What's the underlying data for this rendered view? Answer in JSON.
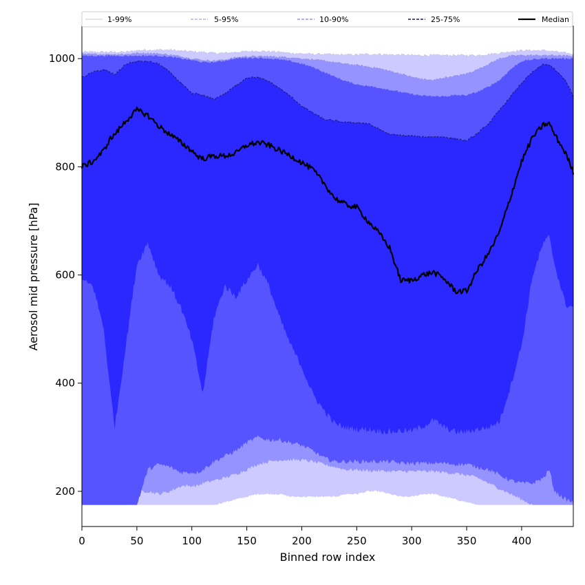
{
  "chart_data": {
    "type": "area",
    "xlabel": "Binned row index",
    "ylabel": "Aerosol mid pressure [hPa]",
    "xlim": [
      0,
      447
    ],
    "ylim": [
      135,
      1060
    ],
    "x_ticks": [
      0,
      50,
      100,
      150,
      200,
      250,
      300,
      350,
      400
    ],
    "y_ticks": [
      200,
      400,
      600,
      800,
      1000
    ],
    "grid": false,
    "legend_position": "top",
    "x_knots": [
      0,
      5,
      10,
      20,
      25,
      30,
      40,
      50,
      60,
      70,
      80,
      90,
      100,
      105,
      110,
      120,
      130,
      140,
      150,
      160,
      170,
      180,
      190,
      200,
      210,
      220,
      230,
      240,
      250,
      260,
      270,
      280,
      290,
      300,
      310,
      320,
      330,
      340,
      350,
      360,
      370,
      380,
      390,
      400,
      410,
      420,
      425,
      430,
      440,
      447
    ],
    "series": [
      {
        "name": "1-99%",
        "color": "#cccaff",
        "line_color": "#c7c7e6",
        "lower": [
          175,
          175,
          175,
          175,
          175,
          175,
          175,
          175,
          175,
          175,
          175,
          175,
          175,
          175,
          175,
          175,
          180,
          185,
          190,
          195,
          195,
          195,
          190,
          190,
          190,
          190,
          190,
          195,
          195,
          200,
          200,
          195,
          190,
          190,
          195,
          195,
          190,
          185,
          180,
          175,
          175,
          175,
          175,
          175,
          175,
          175,
          175,
          175,
          175,
          175
        ],
        "upper": [
          1012,
          1012,
          1012,
          1012,
          1012,
          1012,
          1012,
          1015,
          1016,
          1016,
          1016,
          1014,
          1013,
          1012,
          1012,
          1010,
          1010,
          1012,
          1013,
          1014,
          1013,
          1012,
          1010,
          1009,
          1008,
          1008,
          1007,
          1007,
          1007,
          1008,
          1008,
          1007,
          1007,
          1006,
          1006,
          1006,
          1006,
          1006,
          1006,
          1006,
          1008,
          1010,
          1013,
          1015,
          1015,
          1015,
          1014,
          1013,
          1010,
          1008
        ]
      },
      {
        "name": "5-95%",
        "color": "#9593ff",
        "line_color": "#8f8fd6",
        "lower": [
          175,
          175,
          175,
          175,
          175,
          175,
          175,
          200,
          200,
          195,
          200,
          210,
          210,
          210,
          215,
          220,
          225,
          232,
          240,
          250,
          255,
          258,
          258,
          258,
          255,
          250,
          245,
          240,
          240,
          238,
          238,
          237,
          237,
          237,
          237,
          237,
          235,
          233,
          230,
          225,
          215,
          205,
          195,
          185,
          175,
          175,
          175,
          175,
          175,
          175
        ],
        "upper": [
          1008,
          1008,
          1008,
          1008,
          1008,
          1008,
          1008,
          1010,
          1010,
          1009,
          1007,
          1004,
          1000,
          999,
          997,
          996,
          998,
          1002,
          1004,
          1004,
          1004,
          1003,
          1002,
          1000,
          998,
          996,
          993,
          990,
          988,
          985,
          982,
          977,
          972,
          966,
          962,
          960,
          965,
          968,
          972,
          980,
          990,
          1000,
          1005,
          1006,
          1006,
          1006,
          1006,
          1006,
          1005,
          1005
        ]
      },
      {
        "name": "10-90%",
        "color": "#5654ff",
        "line_color": "#5c5ce6",
        "lower": [
          175,
          175,
          175,
          175,
          175,
          175,
          175,
          175,
          240,
          250,
          245,
          235,
          235,
          235,
          240,
          255,
          265,
          275,
          290,
          300,
          295,
          295,
          290,
          285,
          275,
          262,
          255,
          255,
          255,
          255,
          255,
          255,
          252,
          252,
          252,
          252,
          252,
          250,
          250,
          245,
          240,
          230,
          220,
          215,
          215,
          225,
          240,
          200,
          185,
          180
        ],
        "upper": [
          1005,
          1005,
          1005,
          1005,
          1005,
          1005,
          1005,
          1005,
          1005,
          1005,
          1003,
          1000,
          997,
          995,
          993,
          993,
          996,
          1000,
          1001,
          1001,
          1000,
          998,
          995,
          990,
          984,
          975,
          966,
          958,
          952,
          949,
          946,
          942,
          938,
          934,
          931,
          930,
          930,
          932,
          932,
          938,
          948,
          960,
          980,
          995,
          998,
          1000,
          1000,
          1000,
          1000,
          1000
        ]
      },
      {
        "name": "25-75%",
        "color": "#2b27ff",
        "line_color": "#1a1a66",
        "lower": [
          590,
          585,
          580,
          500,
          400,
          320,
          470,
          620,
          660,
          600,
          580,
          540,
          480,
          430,
          380,
          520,
          580,
          560,
          590,
          620,
          580,
          520,
          470,
          430,
          380,
          350,
          325,
          318,
          315,
          315,
          312,
          310,
          312,
          312,
          320,
          332,
          318,
          310,
          310,
          315,
          318,
          330,
          395,
          470,
          600,
          660,
          670,
          620,
          545,
          540
        ],
        "upper": [
          965,
          970,
          975,
          980,
          975,
          970,
          990,
          995,
          995,
          990,
          975,
          955,
          935,
          935,
          932,
          925,
          935,
          950,
          965,
          965,
          958,
          945,
          930,
          912,
          900,
          888,
          885,
          882,
          882,
          880,
          870,
          860,
          858,
          857,
          855,
          856,
          855,
          852,
          848,
          862,
          880,
          905,
          930,
          955,
          975,
          990,
          988,
          980,
          960,
          930
        ]
      }
    ],
    "median": {
      "name": "Median",
      "color": "#000000",
      "values": [
        800,
        805,
        810,
        830,
        850,
        860,
        885,
        905,
        895,
        875,
        860,
        845,
        830,
        820,
        815,
        820,
        820,
        825,
        840,
        845,
        840,
        830,
        820,
        808,
        795,
        770,
        742,
        730,
        725,
        700,
        678,
        650,
        590,
        590,
        600,
        605,
        592,
        570,
        570,
        610,
        640,
        680,
        745,
        810,
        855,
        878,
        880,
        860,
        825,
        790
      ]
    }
  }
}
